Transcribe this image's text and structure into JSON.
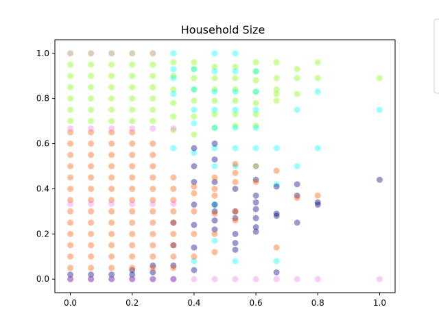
{
  "chart_data": {
    "type": "scatter",
    "title": "Household Size",
    "xlabel": "",
    "ylabel": "",
    "xlim": [
      -0.05,
      1.05
    ],
    "ylim": [
      -0.06,
      1.06
    ],
    "xticks": [
      0.0,
      0.2,
      0.4,
      0.6,
      0.8,
      1.0
    ],
    "xtick_labels": [
      "0.0",
      "0.2",
      "0.4",
      "0.6",
      "0.8",
      "1.0"
    ],
    "yticks": [
      0.0,
      0.2,
      0.4,
      0.6,
      0.8,
      1.0
    ],
    "yticklabels": [
      "0.0",
      "0.2",
      "0.4",
      "0.6",
      "0.8",
      "1.0"
    ],
    "grid": false,
    "legend": "partially visible box at right edge, entries not visible",
    "series": [
      {
        "color": "#7fff00",
        "points": [
          [
            0,
            0.7
          ],
          [
            0,
            0.75
          ],
          [
            0,
            0.8
          ],
          [
            0,
            0.85
          ],
          [
            0,
            0.9
          ],
          [
            0,
            0.95
          ],
          [
            0,
            1.0
          ],
          [
            0.0667,
            0.7
          ],
          [
            0.0667,
            0.75
          ],
          [
            0.0667,
            0.8
          ],
          [
            0.0667,
            0.85
          ],
          [
            0.0667,
            0.9
          ],
          [
            0.0667,
            0.95
          ],
          [
            0.0667,
            1.0
          ],
          [
            0.1333,
            0.7
          ],
          [
            0.1333,
            0.75
          ],
          [
            0.1333,
            0.8
          ],
          [
            0.1333,
            0.85
          ],
          [
            0.1333,
            0.9
          ],
          [
            0.1333,
            0.95
          ],
          [
            0.1333,
            1.0
          ],
          [
            0.2,
            0.7
          ],
          [
            0.2,
            0.75
          ],
          [
            0.2,
            0.8
          ],
          [
            0.2,
            0.85
          ],
          [
            0.2,
            0.9
          ],
          [
            0.2,
            0.95
          ],
          [
            0.2,
            1.0
          ],
          [
            0.2667,
            0.7
          ],
          [
            0.2667,
            0.75
          ],
          [
            0.2667,
            0.8
          ],
          [
            0.2667,
            0.85
          ],
          [
            0.2667,
            0.9
          ],
          [
            0.2667,
            0.95
          ],
          [
            0.2667,
            1.0
          ],
          [
            0.3333,
            0.66
          ],
          [
            0.3333,
            0.72
          ],
          [
            0.3333,
            0.78
          ],
          [
            0.3333,
            0.84
          ],
          [
            0.3333,
            0.9
          ],
          [
            0.3333,
            0.96
          ],
          [
            0.4,
            0.64
          ],
          [
            0.4,
            0.72
          ],
          [
            0.4,
            0.79
          ],
          [
            0.4,
            0.84
          ],
          [
            0.4,
            0.89
          ],
          [
            0.4,
            0.93
          ],
          [
            0.4,
            0.96
          ],
          [
            0.4667,
            0.67
          ],
          [
            0.4667,
            0.73
          ],
          [
            0.4667,
            0.79
          ],
          [
            0.4667,
            0.84
          ],
          [
            0.4667,
            0.89
          ],
          [
            0.4667,
            0.94
          ],
          [
            0.5333,
            0.68
          ],
          [
            0.5333,
            0.73
          ],
          [
            0.5333,
            0.79
          ],
          [
            0.5333,
            0.84
          ],
          [
            0.5333,
            0.89
          ],
          [
            0.5333,
            0.94
          ],
          [
            0.6,
            0.68
          ],
          [
            0.6,
            0.73
          ],
          [
            0.6,
            0.78
          ],
          [
            0.6,
            0.83
          ],
          [
            0.6,
            0.88
          ],
          [
            0.6,
            0.92
          ],
          [
            0.6,
            0.96
          ],
          [
            0.6667,
            0.79
          ],
          [
            0.6667,
            0.82
          ],
          [
            0.6667,
            0.84
          ],
          [
            0.6667,
            0.89
          ],
          [
            0.6667,
            0.96
          ],
          [
            0.7333,
            0.82
          ],
          [
            0.7333,
            0.89
          ],
          [
            0.7333,
            0.93
          ],
          [
            0.8,
            0.89
          ],
          [
            0.8,
            0.96
          ],
          [
            1.0,
            0.89
          ]
        ]
      },
      {
        "color": "#00ffff",
        "points": [
          [
            0.3333,
            0.58
          ],
          [
            0.3333,
            0.82
          ],
          [
            0.3333,
            0.89
          ],
          [
            0.3333,
            0.93
          ],
          [
            0.3333,
            1.0
          ],
          [
            0.4,
            0.08
          ],
          [
            0.4,
            0.56
          ],
          [
            0.4,
            0.69
          ],
          [
            0.4,
            0.75
          ],
          [
            0.4,
            0.84
          ],
          [
            0.4,
            0.93
          ],
          [
            0.4667,
            0.17
          ],
          [
            0.4667,
            0.33
          ],
          [
            0.4667,
            0.5
          ],
          [
            0.4667,
            0.58
          ],
          [
            0.4667,
            0.67
          ],
          [
            0.4667,
            0.75
          ],
          [
            0.4667,
            0.83
          ],
          [
            0.4667,
            0.92
          ],
          [
            0.4667,
            1.0
          ],
          [
            0.5333,
            0.08
          ],
          [
            0.5333,
            0.5
          ],
          [
            0.5333,
            0.58
          ],
          [
            0.5333,
            0.67
          ],
          [
            0.5333,
            0.75
          ],
          [
            0.5333,
            0.83
          ],
          [
            0.5333,
            0.92
          ],
          [
            0.5333,
            1.0
          ],
          [
            0.6,
            0.5
          ],
          [
            0.6,
            0.58
          ],
          [
            0.6,
            0.67
          ],
          [
            0.6,
            0.75
          ],
          [
            0.6,
            0.83
          ],
          [
            0.6,
            0.92
          ],
          [
            0.6667,
            0.08
          ],
          [
            0.6667,
            0.42
          ],
          [
            0.6667,
            0.58
          ],
          [
            0.7333,
            0.5
          ],
          [
            0.7333,
            0.75
          ],
          [
            0.8,
            0.58
          ],
          [
            0.8,
            0.83
          ],
          [
            1.0,
            0.75
          ]
        ]
      },
      {
        "color": "#000080",
        "points": [
          [
            0,
            0.0
          ],
          [
            0,
            0.02
          ],
          [
            0.0667,
            0.0
          ],
          [
            0.0667,
            0.02
          ],
          [
            0.1333,
            0.0
          ],
          [
            0.1333,
            0.02
          ],
          [
            0.2,
            0.0
          ],
          [
            0.2,
            0.02
          ],
          [
            0.2,
            0.04
          ],
          [
            0.2667,
            0.0
          ],
          [
            0.2667,
            0.03
          ],
          [
            0.2667,
            0.06
          ],
          [
            0.3333,
            0.0
          ],
          [
            0.3333,
            0.06
          ],
          [
            0.3333,
            0.15
          ],
          [
            0.3333,
            0.25
          ],
          [
            0.4,
            0.04
          ],
          [
            0.4,
            0.14
          ],
          [
            0.4,
            0.24
          ],
          [
            0.4,
            0.33
          ],
          [
            0.4,
            0.43
          ],
          [
            0.4,
            0.5
          ],
          [
            0.4,
            0.58
          ],
          [
            0.4667,
            0.22
          ],
          [
            0.4667,
            0.26
          ],
          [
            0.4667,
            0.3
          ],
          [
            0.4667,
            0.33
          ],
          [
            0.4667,
            0.43
          ],
          [
            0.4667,
            0.53
          ],
          [
            0.4667,
            0.6
          ],
          [
            0.5333,
            0.13
          ],
          [
            0.5333,
            0.16
          ],
          [
            0.5333,
            0.2
          ],
          [
            0.5333,
            0.27
          ],
          [
            0.5333,
            0.3
          ],
          [
            0.5333,
            0.4
          ],
          [
            0.6,
            0.21
          ],
          [
            0.6,
            0.23
          ],
          [
            0.6,
            0.27
          ],
          [
            0.6,
            0.31
          ],
          [
            0.6,
            0.34
          ],
          [
            0.6,
            0.37
          ],
          [
            0.6,
            0.44
          ],
          [
            0.6667,
            0.28
          ],
          [
            0.6667,
            0.29
          ],
          [
            0.6667,
            0.41
          ],
          [
            0.6667,
            0.03
          ],
          [
            0.7333,
            0.25
          ],
          [
            0.7333,
            0.37
          ],
          [
            0.7333,
            0.42
          ],
          [
            0.8,
            0.33
          ],
          [
            0.8,
            0.34
          ],
          [
            1.0,
            0.44
          ]
        ]
      },
      {
        "color": "#ff5a00",
        "points": [
          [
            0,
            0.05
          ],
          [
            0,
            0.1
          ],
          [
            0,
            0.15
          ],
          [
            0,
            0.2
          ],
          [
            0,
            0.25
          ],
          [
            0,
            0.3
          ],
          [
            0,
            0.35
          ],
          [
            0,
            0.4
          ],
          [
            0,
            0.45
          ],
          [
            0,
            0.5
          ],
          [
            0,
            0.55
          ],
          [
            0,
            0.6
          ],
          [
            0,
            0.65
          ],
          [
            0.0667,
            0.05
          ],
          [
            0.0667,
            0.1
          ],
          [
            0.0667,
            0.15
          ],
          [
            0.0667,
            0.2
          ],
          [
            0.0667,
            0.25
          ],
          [
            0.0667,
            0.3
          ],
          [
            0.0667,
            0.35
          ],
          [
            0.0667,
            0.4
          ],
          [
            0.0667,
            0.45
          ],
          [
            0.0667,
            0.5
          ],
          [
            0.0667,
            0.55
          ],
          [
            0.0667,
            0.6
          ],
          [
            0.0667,
            0.65
          ],
          [
            0.1333,
            0.05
          ],
          [
            0.1333,
            0.1
          ],
          [
            0.1333,
            0.15
          ],
          [
            0.1333,
            0.2
          ],
          [
            0.1333,
            0.25
          ],
          [
            0.1333,
            0.3
          ],
          [
            0.1333,
            0.35
          ],
          [
            0.1333,
            0.4
          ],
          [
            0.1333,
            0.45
          ],
          [
            0.1333,
            0.5
          ],
          [
            0.1333,
            0.55
          ],
          [
            0.1333,
            0.6
          ],
          [
            0.1333,
            0.65
          ],
          [
            0.2,
            0.05
          ],
          [
            0.2,
            0.1
          ],
          [
            0.2,
            0.15
          ],
          [
            0.2,
            0.2
          ],
          [
            0.2,
            0.25
          ],
          [
            0.2,
            0.3
          ],
          [
            0.2,
            0.35
          ],
          [
            0.2,
            0.4
          ],
          [
            0.2,
            0.45
          ],
          [
            0.2,
            0.5
          ],
          [
            0.2,
            0.55
          ],
          [
            0.2,
            0.6
          ],
          [
            0.2,
            0.65
          ],
          [
            0.2667,
            0.05
          ],
          [
            0.2667,
            0.1
          ],
          [
            0.2667,
            0.15
          ],
          [
            0.2667,
            0.2
          ],
          [
            0.2667,
            0.25
          ],
          [
            0.2667,
            0.3
          ],
          [
            0.2667,
            0.35
          ],
          [
            0.2667,
            0.4
          ],
          [
            0.2667,
            0.45
          ],
          [
            0.2667,
            0.5
          ],
          [
            0.2667,
            0.55
          ],
          [
            0.2667,
            0.6
          ],
          [
            0.3333,
            0.05
          ],
          [
            0.3333,
            0.1
          ],
          [
            0.3333,
            0.15
          ],
          [
            0.3333,
            0.2
          ],
          [
            0.3333,
            0.25
          ],
          [
            0.3333,
            0.3
          ],
          [
            0.3333,
            0.35
          ],
          [
            0.3333,
            0.4
          ],
          [
            0.3333,
            0.45
          ],
          [
            0.4,
            0.1
          ],
          [
            0.4,
            0.2
          ],
          [
            0.4,
            0.3
          ],
          [
            0.4,
            0.38
          ],
          [
            0.4,
            0.41
          ],
          [
            0.4667,
            0.12
          ],
          [
            0.4667,
            0.2
          ],
          [
            0.4667,
            0.29
          ],
          [
            0.4667,
            0.37
          ],
          [
            0.4667,
            0.4
          ],
          [
            0.4667,
            0.45
          ],
          [
            0.5333,
            0.26
          ],
          [
            0.5333,
            0.3
          ],
          [
            0.5333,
            0.43
          ],
          [
            0.5333,
            0.47
          ],
          [
            0.5333,
            0.51
          ],
          [
            0.6,
            0.43
          ],
          [
            0.6,
            0.5
          ],
          [
            0.6667,
            0.14
          ],
          [
            0.6667,
            0.48
          ],
          [
            0.7333,
            0.36
          ],
          [
            0.8,
            0.37
          ]
        ]
      },
      {
        "color": "#ee82ee",
        "points": [
          [
            0,
            0.0
          ],
          [
            0,
            0.333
          ],
          [
            0,
            0.667
          ],
          [
            0,
            1.0
          ],
          [
            0.0667,
            0.0
          ],
          [
            0.0667,
            0.333
          ],
          [
            0.0667,
            0.667
          ],
          [
            0.0667,
            1.0
          ],
          [
            0.1333,
            0.0
          ],
          [
            0.1333,
            0.333
          ],
          [
            0.1333,
            0.667
          ],
          [
            0.1333,
            1.0
          ],
          [
            0.2,
            0.0
          ],
          [
            0.2,
            0.333
          ],
          [
            0.2,
            0.667
          ],
          [
            0.2,
            1.0
          ],
          [
            0.2667,
            0.0
          ],
          [
            0.2667,
            0.333
          ],
          [
            0.2667,
            0.667
          ],
          [
            0.2667,
            1.0
          ],
          [
            0.3333,
            0.0
          ],
          [
            0.3333,
            0.333
          ],
          [
            0.3333,
            0.667
          ],
          [
            0.4,
            0.0
          ],
          [
            0.4667,
            0.0
          ],
          [
            0.5333,
            0.0
          ],
          [
            0.6,
            0.0
          ],
          [
            0.6667,
            0.0
          ],
          [
            0.7333,
            0.0
          ],
          [
            0.8,
            0.0
          ],
          [
            1.0,
            0.0
          ]
        ]
      }
    ]
  }
}
